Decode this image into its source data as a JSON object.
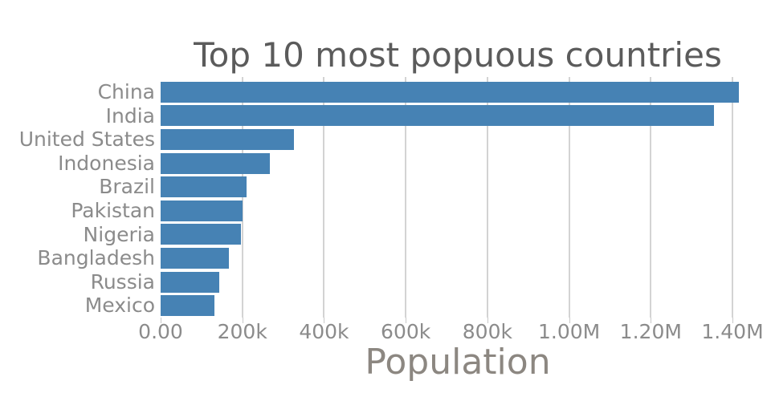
{
  "chart_data": {
    "type": "bar",
    "orientation": "horizontal",
    "title": "Top 10 most popuous countries",
    "xlabel": "Population",
    "ylabel": "",
    "categories": [
      "China",
      "India",
      "United States",
      "Indonesia",
      "Brazil",
      "Pakistan",
      "Nigeria",
      "Bangladesh",
      "Russia",
      "Mexico"
    ],
    "values": [
      1415046,
      1354052,
      326767,
      266795,
      210868,
      200814,
      195875,
      166368,
      143965,
      130759
    ],
    "xlim": [
      0,
      1455000
    ],
    "xticks": [
      {
        "value": 0,
        "label": "0.00"
      },
      {
        "value": 200000,
        "label": "200k"
      },
      {
        "value": 400000,
        "label": "400k"
      },
      {
        "value": 600000,
        "label": "600k"
      },
      {
        "value": 800000,
        "label": "800k"
      },
      {
        "value": 1000000,
        "label": "1.00M"
      },
      {
        "value": 1200000,
        "label": "1.20M"
      },
      {
        "value": 1400000,
        "label": "1.40M"
      }
    ],
    "grid": "vertical-only",
    "legend": "none",
    "colors": {
      "bar": "#4682b4",
      "gridline": "#d3d3d3",
      "tick_mark": "#c9c9c9",
      "title_text": "#5b5b5b",
      "category_label": "#8b8b8b",
      "tick_label": "#8b8b8b",
      "axis_title": "#8c8781",
      "background": "#ffffff"
    }
  }
}
